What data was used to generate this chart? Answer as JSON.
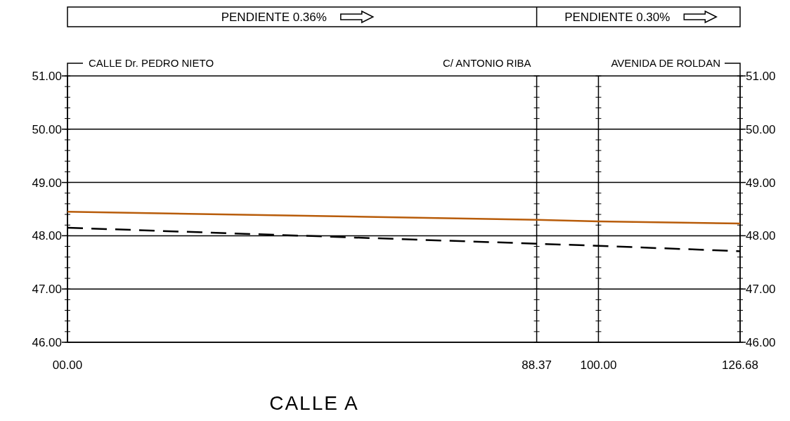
{
  "chart_data": {
    "type": "line",
    "title": "CALLE A",
    "annotations": [
      "PENDIENTE 0.36%",
      "PENDIENTE 0.30%",
      "CALLE Dr. PEDRO NIETO",
      "C/ ANTONIO RIBA",
      "AVENIDA DE ROLDAN"
    ],
    "series": [
      {
        "color": "#b85c0a",
        "x": [
          0,
          88.37,
          100,
          126.68
        ],
        "values": [
          48.45,
          48.3,
          48.27,
          48.23
        ],
        "line_style": "solid"
      },
      {
        "color": "#000000",
        "x": [
          0,
          88.37,
          100,
          126.68
        ],
        "values": [
          48.15,
          47.85,
          47.81,
          47.71
        ],
        "line_style": "dashed"
      }
    ],
    "xlim": [
      0,
      126.68
    ],
    "xticks": [
      {
        "value": 0,
        "label": "00.00"
      },
      88.37,
      {
        "value": 100,
        "label": "100.00"
      },
      126.68
    ],
    "ylim": [
      46,
      51
    ],
    "yticks": [
      {
        "value": 46,
        "label": "46.00"
      },
      {
        "value": 46.2,
        "label": null
      },
      {
        "value": 46.4,
        "label": null
      },
      {
        "value": 46.6,
        "label": null
      },
      {
        "value": 46.8,
        "label": null
      },
      {
        "value": 47,
        "label": "47.00"
      },
      {
        "value": 47.2,
        "label": null
      },
      {
        "value": 47.4,
        "label": null
      },
      {
        "value": 47.6,
        "label": null
      },
      {
        "value": 47.8,
        "label": null
      },
      {
        "value": 48,
        "label": "48.00"
      },
      {
        "value": 48.2,
        "label": null
      },
      {
        "value": 48.4,
        "label": null
      },
      {
        "value": 48.6,
        "label": null
      },
      {
        "value": 48.8,
        "label": null
      },
      {
        "value": 49,
        "label": "49.00"
      },
      {
        "value": 49.2,
        "label": null
      },
      {
        "value": 49.4,
        "label": null
      },
      {
        "value": 49.6,
        "label": null
      },
      {
        "value": 49.8,
        "label": null
      },
      {
        "value": 50,
        "label": "50.00"
      },
      {
        "value": 50.2,
        "label": null
      },
      {
        "value": 50.4,
        "label": null
      },
      {
        "value": 50.6,
        "label": null
      },
      {
        "value": 50.8,
        "label": null
      },
      {
        "value": 51,
        "label": "51.00"
      }
    ],
    "y2lim": [
      46,
      51
    ],
    "y2ticks": [
      {
        "value": 46,
        "label": "46.00"
      },
      {
        "value": 47,
        "label": "47.00"
      },
      {
        "value": 48,
        "label": "48.00"
      },
      {
        "value": 49,
        "label": "49.00"
      },
      {
        "value": 50,
        "label": "50.00"
      },
      {
        "value": 51,
        "label": "51.00"
      }
    ],
    "grid": true,
    "marker": "none"
  }
}
